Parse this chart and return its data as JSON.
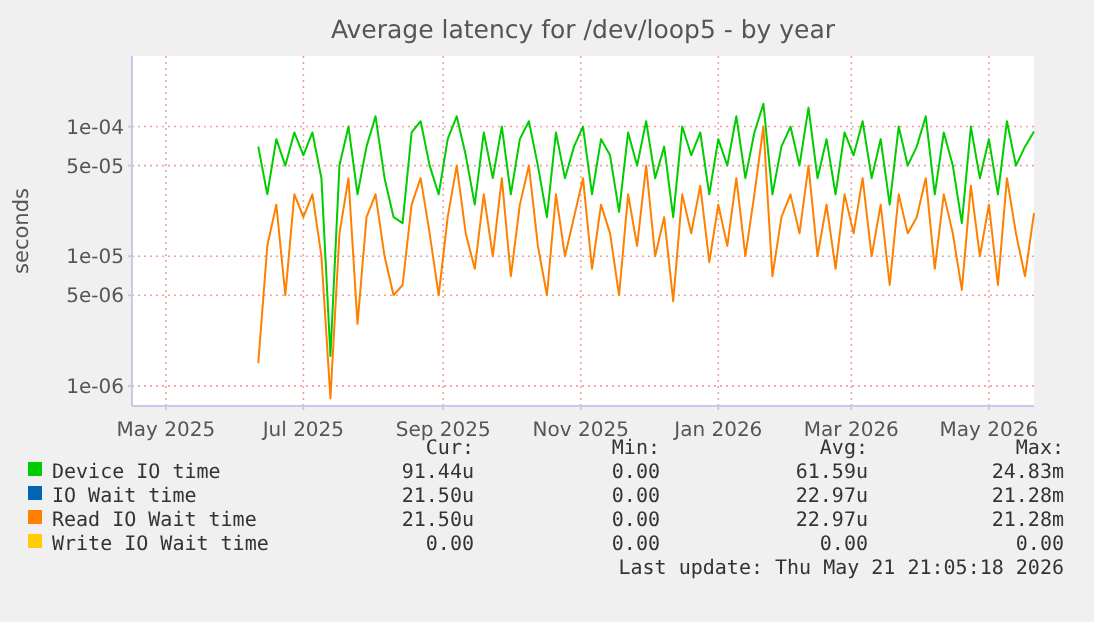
{
  "chart_data": {
    "type": "line",
    "title": "Average latency for /dev/loop5 - by year",
    "ylabel": "seconds",
    "log": "y",
    "grid": true,
    "legend": "bottom",
    "line_style": "solid",
    "marker": "none",
    "xlim": [
      "2025-04-16",
      "2026-05-21"
    ],
    "xticks": [
      {
        "value": "2025-05-01",
        "label": "May 2025"
      },
      {
        "value": "2025-07-01",
        "label": "Jul 2025"
      },
      {
        "value": "2025-09-01",
        "label": "Sep 2025"
      },
      {
        "value": "2025-11-01",
        "label": "Nov 2025"
      },
      {
        "value": "2026-01-01",
        "label": "Jan 2026"
      },
      {
        "value": "2026-03-01",
        "label": "Mar 2026"
      },
      {
        "value": "2026-05-01",
        "label": "May 2026"
      }
    ],
    "ylim": [
      7e-07,
      0.00035
    ],
    "yticks": [
      {
        "value": 1e-06,
        "label": "1e-06"
      },
      {
        "value": 5e-06,
        "label": "5e-06"
      },
      {
        "value": 1e-05,
        "label": "1e-05"
      },
      {
        "value": 5e-05,
        "label": "5e-05"
      },
      {
        "value": 0.0001,
        "label": "1e-04"
      }
    ],
    "x": [
      "2025-06-11",
      "2025-06-15",
      "2025-06-19",
      "2025-06-23",
      "2025-06-27",
      "2025-07-01",
      "2025-07-05",
      "2025-07-09",
      "2025-07-13",
      "2025-07-17",
      "2025-07-21",
      "2025-07-25",
      "2025-07-29",
      "2025-08-02",
      "2025-08-06",
      "2025-08-10",
      "2025-08-14",
      "2025-08-18",
      "2025-08-22",
      "2025-08-26",
      "2025-08-30",
      "2025-09-03",
      "2025-09-07",
      "2025-09-11",
      "2025-09-15",
      "2025-09-19",
      "2025-09-23",
      "2025-09-27",
      "2025-10-01",
      "2025-10-05",
      "2025-10-09",
      "2025-10-13",
      "2025-10-17",
      "2025-10-21",
      "2025-10-25",
      "2025-10-29",
      "2025-11-02",
      "2025-11-06",
      "2025-11-10",
      "2025-11-14",
      "2025-11-18",
      "2025-11-22",
      "2025-11-26",
      "2025-11-30",
      "2025-12-04",
      "2025-12-08",
      "2025-12-12",
      "2025-12-16",
      "2025-12-20",
      "2025-12-24",
      "2025-12-28",
      "2026-01-01",
      "2026-01-05",
      "2026-01-09",
      "2026-01-13",
      "2026-01-17",
      "2026-01-21",
      "2026-01-25",
      "2026-01-29",
      "2026-02-02",
      "2026-02-06",
      "2026-02-10",
      "2026-02-14",
      "2026-02-18",
      "2026-02-22",
      "2026-02-26",
      "2026-03-02",
      "2026-03-06",
      "2026-03-10",
      "2026-03-14",
      "2026-03-18",
      "2026-03-22",
      "2026-03-26",
      "2026-03-30",
      "2026-04-03",
      "2026-04-07",
      "2026-04-11",
      "2026-04-15",
      "2026-04-19",
      "2026-04-23",
      "2026-04-27",
      "2026-05-01",
      "2026-05-05",
      "2026-05-09",
      "2026-05-13",
      "2026-05-17",
      "2026-05-21"
    ],
    "series": [
      {
        "name": "Device IO time",
        "color": "#00cc00",
        "values": [
          7e-05,
          3e-05,
          8e-05,
          5e-05,
          9e-05,
          6e-05,
          9e-05,
          4e-05,
          1.7e-06,
          5e-05,
          0.0001,
          3e-05,
          7e-05,
          0.00012,
          4e-05,
          2e-05,
          1.8e-05,
          9e-05,
          0.00011,
          5e-05,
          3e-05,
          8e-05,
          0.00012,
          6e-05,
          2.5e-05,
          9e-05,
          4e-05,
          0.0001,
          3e-05,
          8e-05,
          0.00011,
          5e-05,
          2e-05,
          9e-05,
          4e-05,
          7e-05,
          0.0001,
          3e-05,
          8e-05,
          6e-05,
          2.2e-05,
          9e-05,
          5e-05,
          0.00011,
          4e-05,
          7e-05,
          2e-05,
          0.0001,
          6e-05,
          9e-05,
          3e-05,
          8e-05,
          5e-05,
          0.00012,
          4e-05,
          9e-05,
          0.00015,
          3e-05,
          7e-05,
          0.0001,
          5e-05,
          0.00014,
          4e-05,
          8e-05,
          3e-05,
          9e-05,
          6e-05,
          0.00011,
          4e-05,
          8e-05,
          2.5e-05,
          0.0001,
          5e-05,
          7e-05,
          0.00012,
          3e-05,
          9e-05,
          5e-05,
          1.8e-05,
          0.0001,
          4e-05,
          8e-05,
          3e-05,
          0.00011,
          5e-05,
          7e-05,
          9.144e-05
        ]
      },
      {
        "name": "IO Wait time",
        "color": "#0066b3",
        "values": [
          null,
          null,
          null,
          null,
          null,
          null,
          null,
          null,
          null,
          null,
          null,
          null,
          null,
          null,
          null,
          null,
          null,
          null,
          null,
          null,
          null,
          null,
          null,
          null,
          null,
          null,
          null,
          null,
          null,
          null,
          null,
          null,
          null,
          null,
          null,
          null,
          null,
          null,
          null,
          null,
          null,
          null,
          null,
          null,
          null,
          null,
          null,
          null,
          null,
          null,
          null,
          null,
          null,
          null,
          null,
          null,
          null,
          null,
          null,
          null,
          null,
          null,
          null,
          null,
          null,
          null,
          null,
          null,
          null,
          null,
          null,
          null,
          null,
          null,
          null,
          null,
          null,
          null,
          null,
          null,
          null,
          null,
          null,
          null,
          null,
          null,
          null
        ]
      },
      {
        "name": "Read IO Wait time",
        "color": "#ff8000",
        "values": [
          1.5e-06,
          1.2e-05,
          2.5e-05,
          5e-06,
          3e-05,
          2e-05,
          3e-05,
          1e-05,
          8e-07,
          1.5e-05,
          4e-05,
          3e-06,
          2e-05,
          3e-05,
          1e-05,
          5e-06,
          6e-06,
          2.5e-05,
          4e-05,
          1.5e-05,
          5e-06,
          2e-05,
          5e-05,
          1.5e-05,
          8e-06,
          3e-05,
          1e-05,
          4e-05,
          7e-06,
          2.5e-05,
          5e-05,
          1.2e-05,
          5e-06,
          3e-05,
          1e-05,
          2e-05,
          4e-05,
          8e-06,
          2.5e-05,
          1.5e-05,
          5e-06,
          3e-05,
          1.2e-05,
          5e-05,
          1e-05,
          2e-05,
          4.5e-06,
          3e-05,
          1.5e-05,
          3.5e-05,
          9e-06,
          2.5e-05,
          1.2e-05,
          4e-05,
          1e-05,
          3e-05,
          0.0001,
          7e-06,
          2e-05,
          3e-05,
          1.5e-05,
          5e-05,
          1e-05,
          2.5e-05,
          8e-06,
          3e-05,
          1.5e-05,
          4e-05,
          1e-05,
          2.5e-05,
          6e-06,
          3e-05,
          1.5e-05,
          2e-05,
          4e-05,
          8e-06,
          3e-05,
          1.5e-05,
          5.5e-06,
          3.5e-05,
          1e-05,
          2.5e-05,
          6e-06,
          4e-05,
          1.5e-05,
          7e-06,
          2.15e-05
        ]
      },
      {
        "name": "Write IO Wait time",
        "color": "#ffcc00",
        "values": [
          null,
          null,
          null,
          null,
          null,
          null,
          null,
          null,
          null,
          null,
          null,
          null,
          null,
          null,
          null,
          null,
          null,
          null,
          null,
          null,
          null,
          null,
          null,
          null,
          null,
          null,
          null,
          null,
          null,
          null,
          null,
          null,
          null,
          null,
          null,
          null,
          null,
          null,
          null,
          null,
          null,
          null,
          null,
          null,
          null,
          null,
          null,
          null,
          null,
          null,
          null,
          null,
          null,
          null,
          null,
          null,
          null,
          null,
          null,
          null,
          null,
          null,
          null,
          null,
          null,
          null,
          null,
          null,
          null,
          null,
          null,
          null,
          null,
          null,
          null,
          null,
          null,
          null,
          null,
          null,
          null,
          null,
          null,
          null,
          null,
          null,
          null
        ]
      }
    ],
    "annotations": [
      "Cur:",
      "Min:",
      "Avg:",
      "Max:",
      "91.44u",
      "0.00",
      "61.59u",
      "24.83m",
      "21.50u",
      "0.00",
      "22.97u",
      "21.28m",
      "21.50u",
      "0.00",
      "22.97u",
      "21.28m",
      "0.00",
      "0.00",
      "0.00",
      "0.00",
      "Last update: Thu May 21 21:05:18 2026"
    ]
  }
}
